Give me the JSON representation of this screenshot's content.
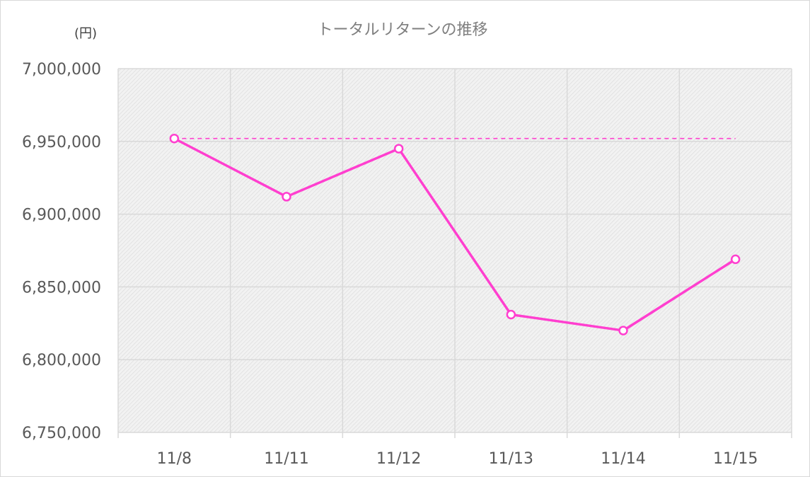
{
  "chart_data": {
    "type": "line",
    "title": "トータルリターンの推移",
    "y_unit": "(円)",
    "categories": [
      "11/8",
      "11/11",
      "11/12",
      "11/13",
      "11/14",
      "11/15"
    ],
    "series": [
      {
        "values": [
          6952000,
          6912000,
          6945000,
          6831000,
          6820000,
          6869000
        ],
        "color": "#ff3fcf"
      }
    ],
    "reference_line": {
      "value": 6952000,
      "style": "dashed",
      "color": "#ff3fcf"
    },
    "ylim": [
      6750000,
      7000000
    ],
    "yticks": [
      6750000,
      6800000,
      6850000,
      6900000,
      6950000,
      7000000
    ],
    "grid": true,
    "plot_background": "hatched-gray"
  }
}
